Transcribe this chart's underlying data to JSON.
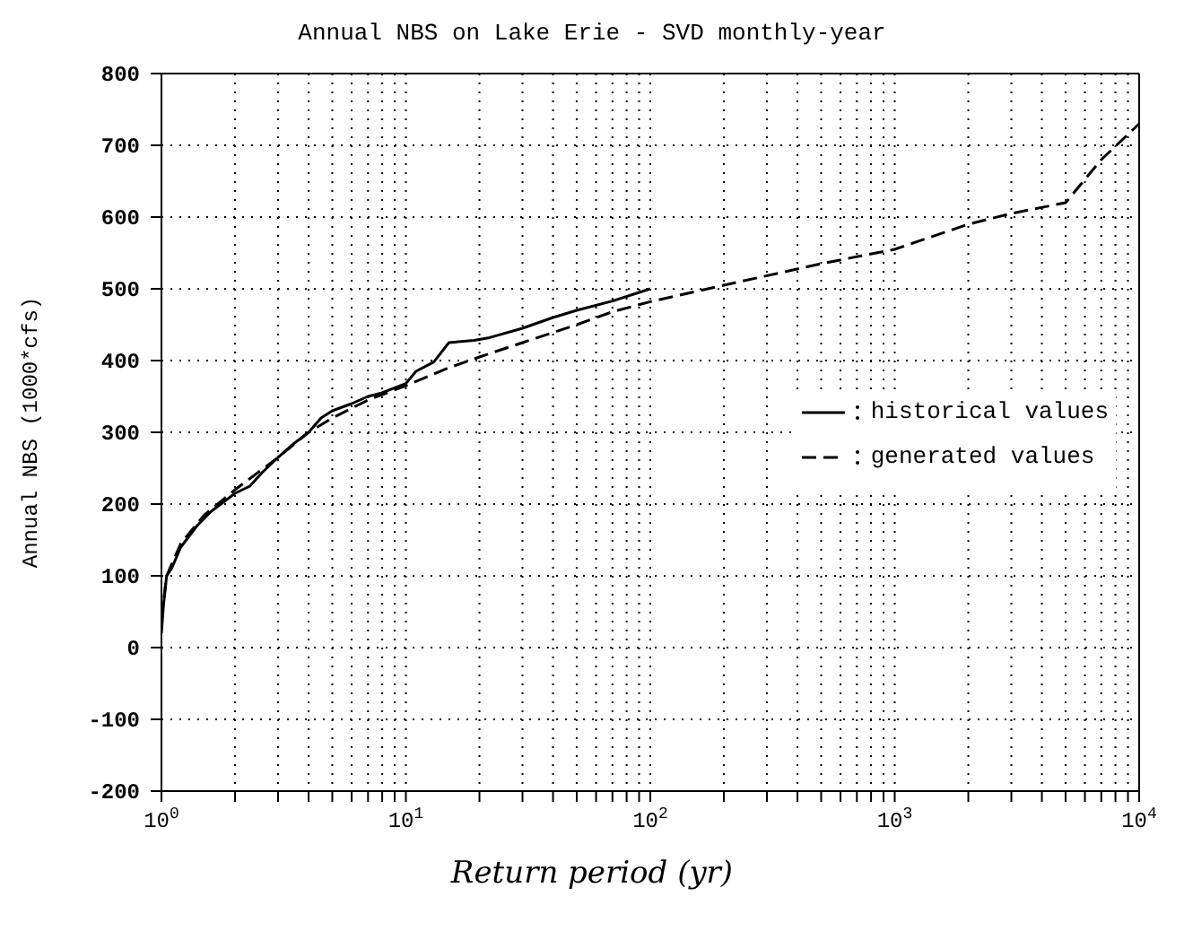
{
  "chart_data": {
    "type": "line",
    "title": "Annual NBS on Lake Erie - SVD monthly-year",
    "xlabel": "Return period (yr)",
    "ylabel": "Annual NBS (1000*cfs)",
    "log": "x",
    "grid": true,
    "legend": "right",
    "marker": "none",
    "xlim": [
      1,
      10000
    ],
    "xticks": [
      {
        "value": 1,
        "label": "10$^{0}$"
      },
      {
        "value": 2,
        "label": null
      },
      {
        "value": 3,
        "label": null
      },
      {
        "value": 4,
        "label": null
      },
      {
        "value": 5,
        "label": null
      },
      {
        "value": 6,
        "label": null
      },
      {
        "value": 7,
        "label": null
      },
      {
        "value": 8,
        "label": null
      },
      {
        "value": 9,
        "label": null
      },
      {
        "value": 10,
        "label": "10$^{1}$"
      },
      {
        "value": 20,
        "label": null
      },
      {
        "value": 30,
        "label": null
      },
      {
        "value": 40,
        "label": null
      },
      {
        "value": 50,
        "label": null
      },
      {
        "value": 60,
        "label": null
      },
      {
        "value": 70,
        "label": null
      },
      {
        "value": 80,
        "label": null
      },
      {
        "value": 90,
        "label": null
      },
      {
        "value": 100,
        "label": "10$^{2}$"
      },
      {
        "value": 200,
        "label": null
      },
      {
        "value": 300,
        "label": null
      },
      {
        "value": 400,
        "label": null
      },
      {
        "value": 500,
        "label": null
      },
      {
        "value": 600,
        "label": null
      },
      {
        "value": 700,
        "label": null
      },
      {
        "value": 800,
        "label": null
      },
      {
        "value": 900,
        "label": null
      },
      {
        "value": 1000,
        "label": "10$^{3}$"
      },
      {
        "value": 2000,
        "label": null
      },
      {
        "value": 3000,
        "label": null
      },
      {
        "value": 4000,
        "label": null
      },
      {
        "value": 5000,
        "label": null
      },
      {
        "value": 6000,
        "label": null
      },
      {
        "value": 7000,
        "label": null
      },
      {
        "value": 8000,
        "label": null
      },
      {
        "value": 9000,
        "label": null
      },
      {
        "value": 10000,
        "label": "10$^{4}$"
      }
    ],
    "ylim": [
      -200,
      800
    ],
    "yticks": [
      -200,
      -100,
      0,
      100,
      200,
      300,
      400,
      500,
      600,
      700,
      800
    ],
    "series": [
      {
        "name": "historical values",
        "color": "#000000",
        "line_style": "solid",
        "x": [
          1,
          1.02,
          1.05,
          1.1,
          1.2,
          1.4,
          1.6,
          2,
          2.3,
          2.6,
          3,
          3.5,
          4,
          4.5,
          5,
          6,
          7,
          8,
          9,
          10,
          11,
          13,
          15,
          19,
          22,
          30,
          40,
          50,
          70,
          100
        ],
        "values": [
          20,
          60,
          100,
          110,
          140,
          170,
          190,
          215,
          225,
          245,
          265,
          285,
          300,
          320,
          330,
          340,
          350,
          355,
          362,
          368,
          385,
          398,
          425,
          428,
          432,
          445,
          460,
          470,
          483,
          500
        ]
      },
      {
        "name": "generated values",
        "color": "#000000",
        "line_style": "dashed",
        "x": [
          1,
          1.05,
          1.2,
          1.5,
          2,
          3,
          4,
          5,
          7,
          10,
          15,
          20,
          30,
          50,
          70,
          100,
          200,
          500,
          1000,
          2000,
          3000,
          5000,
          7000,
          10000
        ],
        "values": [
          40,
          100,
          145,
          185,
          220,
          265,
          300,
          320,
          345,
          365,
          390,
          405,
          425,
          450,
          468,
          482,
          505,
          535,
          555,
          590,
          605,
          620,
          680,
          730
        ]
      }
    ]
  }
}
